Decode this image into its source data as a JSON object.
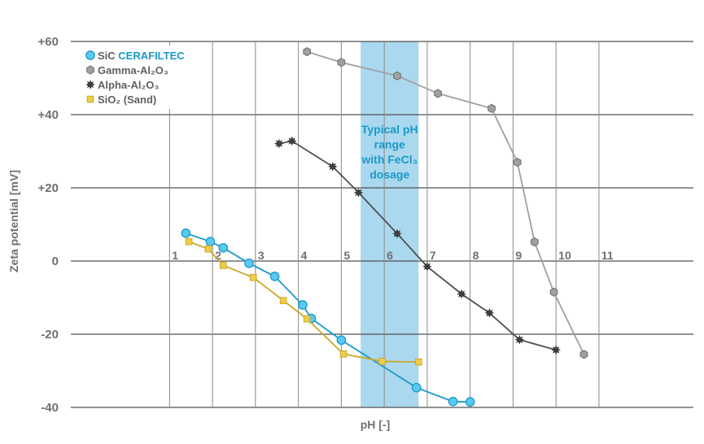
{
  "chart_data": {
    "type": "line",
    "xlabel": "pH [-]",
    "ylabel": "Zeta potential [mV]",
    "xlim": [
      -1.3,
      13.2
    ],
    "ylim": [
      -40,
      60
    ],
    "y_ticks": [
      {
        "value": 60,
        "label": "+60"
      },
      {
        "value": 40,
        "label": "+40"
      },
      {
        "value": 20,
        "label": "+20"
      },
      {
        "value": 0,
        "label": "0"
      },
      {
        "value": -20,
        "label": "-20"
      },
      {
        "value": -40,
        "label": "-40"
      }
    ],
    "x_ticks": [
      {
        "value": 1,
        "label": "1"
      },
      {
        "value": 2,
        "label": "2"
      },
      {
        "value": 3,
        "label": "3"
      },
      {
        "value": 4,
        "label": "4"
      },
      {
        "value": 5,
        "label": "5"
      },
      {
        "value": 6,
        "label": "6"
      },
      {
        "value": 7,
        "label": "7"
      },
      {
        "value": 8,
        "label": "8"
      },
      {
        "value": 9,
        "label": "9"
      },
      {
        "value": 10,
        "label": "10"
      },
      {
        "value": 11,
        "label": "11"
      }
    ],
    "grid": true,
    "legend_position": "top-left",
    "band": {
      "x_range": [
        5.45,
        6.8
      ],
      "color": "#aad8ef",
      "label": [
        "Typical pH",
        "range",
        "with FeCl₃",
        "dosage"
      ],
      "label_color": "#1a9ac9"
    },
    "series": [
      {
        "name_part1": "SiC ",
        "name_part2": "CERAFILTEC",
        "marker": "circle",
        "color": "#1a9ac9",
        "fill": "#5bc8ef",
        "points": [
          [
            1.38,
            7.6
          ],
          [
            1.95,
            5.3
          ],
          [
            2.25,
            3.6
          ],
          [
            2.85,
            -0.6
          ],
          [
            3.45,
            -4.2
          ],
          [
            4.1,
            -12.0
          ],
          [
            4.3,
            -15.7
          ],
          [
            5.0,
            -21.6
          ],
          [
            6.75,
            -34.6
          ],
          [
            7.6,
            -38.4
          ],
          [
            8.0,
            -38.5
          ]
        ]
      },
      {
        "name": "Gamma-Al₂O₃",
        "marker": "hexagon",
        "color": "#a0a0a0",
        "fill": "#a0a0a0",
        "points": [
          [
            4.2,
            57.2
          ],
          [
            5.0,
            54.3
          ],
          [
            6.3,
            50.6
          ],
          [
            7.25,
            45.8
          ],
          [
            8.5,
            41.7
          ],
          [
            9.1,
            27.0
          ],
          [
            9.5,
            5.2
          ],
          [
            9.95,
            -8.5
          ],
          [
            10.65,
            -25.5
          ]
        ]
      },
      {
        "name": "Alpha-Al₂O₃",
        "marker": "star",
        "color": "#505050",
        "fill": "#404040",
        "points": [
          [
            3.55,
            32.1
          ],
          [
            3.85,
            32.8
          ],
          [
            4.8,
            25.8
          ],
          [
            5.4,
            18.7
          ],
          [
            6.3,
            7.5
          ],
          [
            7.0,
            -1.5
          ],
          [
            7.8,
            -9.0
          ],
          [
            8.45,
            -14.2
          ],
          [
            9.15,
            -21.5
          ],
          [
            10.0,
            -24.3
          ]
        ]
      },
      {
        "name": "SiO₂ (Sand)",
        "marker": "square",
        "color": "#c9a92a",
        "fill": "#f0cd48",
        "points": [
          [
            1.45,
            5.3
          ],
          [
            1.9,
            3.3
          ],
          [
            2.25,
            -1.2
          ],
          [
            2.95,
            -4.5
          ],
          [
            3.65,
            -10.8
          ],
          [
            4.2,
            -15.8
          ],
          [
            5.05,
            -25.4
          ],
          [
            5.95,
            -27.4
          ],
          [
            6.8,
            -27.6
          ]
        ]
      }
    ]
  }
}
